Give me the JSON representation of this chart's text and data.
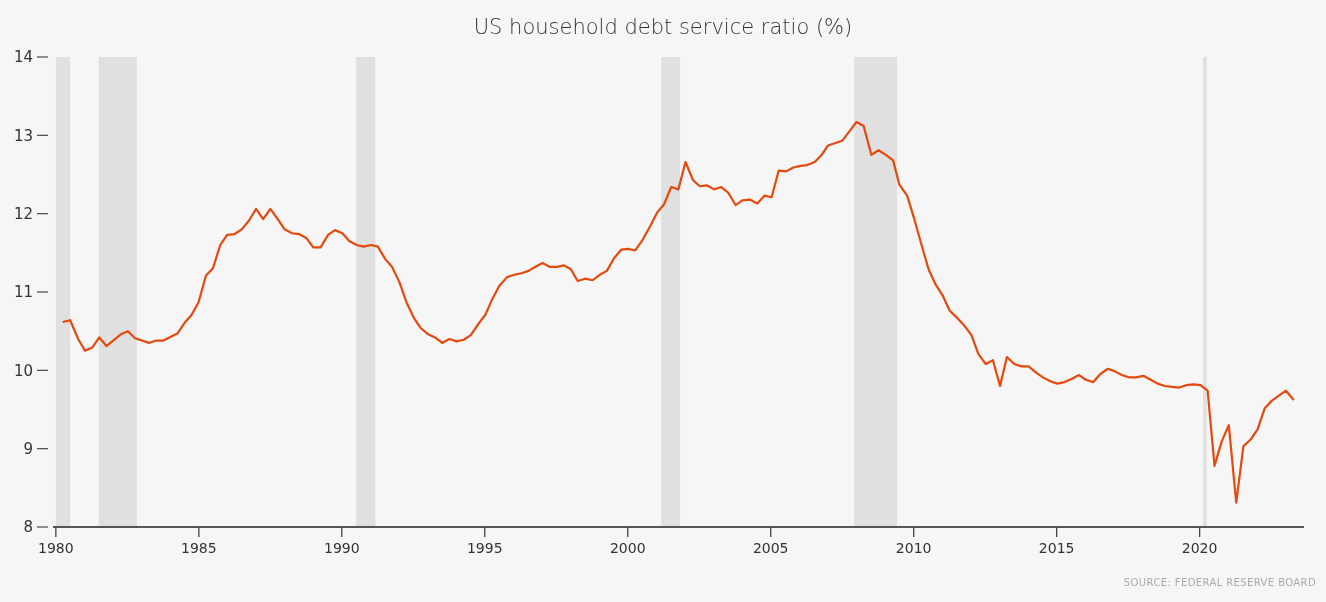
{
  "chart_data": {
    "type": "line",
    "title": "US household debt service ratio (%)",
    "annotations": [
      "SOURCE: FEDERAL RESERVE BOARD"
    ],
    "x": [
      1980.27,
      1980.5,
      1980.78,
      1981.02,
      1981.27,
      1981.52,
      1981.77,
      1982.27,
      1982.52,
      1982.77,
      1983.26,
      1983.5,
      1983.76,
      1984.25,
      1984.49,
      1984.75,
      1984.99,
      1985.25,
      1985.49,
      1985.75,
      1985.99,
      1986.25,
      1986.5,
      1986.75,
      1987.0,
      1987.25,
      1987.5,
      1987.76,
      1988.0,
      1988.26,
      1988.5,
      1988.76,
      1989.0,
      1989.26,
      1989.52,
      1989.76,
      1990.02,
      1990.26,
      1990.52,
      1990.76,
      1991.02,
      1991.26,
      1991.52,
      1991.76,
      1992.02,
      1992.26,
      1992.52,
      1992.76,
      1993.02,
      1993.26,
      1993.51,
      1993.76,
      1994.02,
      1994.26,
      1994.51,
      1994.79,
      1995.02,
      1995.25,
      1995.51,
      1995.78,
      1996.03,
      1996.28,
      1996.53,
      1996.76,
      1997.02,
      1997.28,
      1997.53,
      1997.77,
      1998.01,
      1998.25,
      1998.51,
      1998.77,
      1999.02,
      1999.27,
      1999.52,
      1999.77,
      2000.01,
      2000.26,
      2000.51,
      2000.77,
      2001.02,
      2001.27,
      2001.52,
      2001.77,
      2002.02,
      2002.28,
      2002.52,
      2002.78,
      2003.02,
      2003.27,
      2003.51,
      2003.77,
      2004.01,
      2004.27,
      2004.53,
      2004.78,
      2005.03,
      2005.28,
      2005.54,
      2005.79,
      2006.04,
      2006.28,
      2006.54,
      2006.8,
      2007.0,
      2007.5,
      2007.75,
      2008.0,
      2008.25,
      2008.52,
      2008.77,
      2009.03,
      2009.28,
      2009.5,
      2009.77,
      2010.03,
      2010.26,
      2010.52,
      2010.76,
      2011.02,
      2011.26,
      2011.52,
      2011.77,
      2012.02,
      2012.26,
      2012.52,
      2012.77,
      2013.02,
      2013.26,
      2013.52,
      2013.77,
      2014.02,
      2014.28,
      2014.52,
      2014.78,
      2015.02,
      2015.28,
      2015.52,
      2015.78,
      2016.02,
      2016.28,
      2016.52,
      2016.78,
      2017.02,
      2017.28,
      2017.53,
      2017.78,
      2018.03,
      2018.29,
      2018.53,
      2018.79,
      2019.03,
      2019.29,
      2019.53,
      2019.79,
      2020.03,
      2020.28,
      2020.52,
      2020.77,
      2021.02,
      2021.28,
      2021.53,
      2021.79,
      2022.03,
      2022.28,
      2022.52,
      2022.78,
      2023.02,
      2023.27
    ],
    "series": [
      {
        "color": "#e5490d",
        "values": [
          10.62,
          10.64,
          10.4,
          10.25,
          10.29,
          10.42,
          10.31,
          10.46,
          10.5,
          10.41,
          10.35,
          10.38,
          10.38,
          10.47,
          10.6,
          10.71,
          10.87,
          11.21,
          11.3,
          11.6,
          11.73,
          11.74,
          11.8,
          11.91,
          12.06,
          11.93,
          12.06,
          11.93,
          11.8,
          11.75,
          11.74,
          11.69,
          11.57,
          11.57,
          11.73,
          11.79,
          11.75,
          11.65,
          11.6,
          11.58,
          11.6,
          11.58,
          11.42,
          11.32,
          11.12,
          10.87,
          10.67,
          10.54,
          10.46,
          10.42,
          10.35,
          10.4,
          10.37,
          10.39,
          10.45,
          10.6,
          10.71,
          10.9,
          11.08,
          11.19,
          11.22,
          11.24,
          11.27,
          11.32,
          11.37,
          11.32,
          11.32,
          11.34,
          11.29,
          11.14,
          11.17,
          11.15,
          11.22,
          11.27,
          11.43,
          11.54,
          11.55,
          11.53,
          11.66,
          11.83,
          12.01,
          12.12,
          12.34,
          12.31,
          12.66,
          12.43,
          12.35,
          12.36,
          12.31,
          12.34,
          12.27,
          12.11,
          12.17,
          12.18,
          12.13,
          12.23,
          12.21,
          12.55,
          12.54,
          12.59,
          12.61,
          12.62,
          12.66,
          12.76,
          12.87,
          12.93,
          13.05,
          13.17,
          13.12,
          12.75,
          12.81,
          12.75,
          12.68,
          12.37,
          12.23,
          11.92,
          11.62,
          11.29,
          11.1,
          10.95,
          10.76,
          10.67,
          10.57,
          10.45,
          10.21,
          10.08,
          10.13,
          9.8,
          10.17,
          10.08,
          10.05,
          10.05,
          9.97,
          9.91,
          9.86,
          9.83,
          9.85,
          9.89,
          9.94,
          9.88,
          9.85,
          9.95,
          10.02,
          9.99,
          9.94,
          9.91,
          9.91,
          9.93,
          9.88,
          9.83,
          9.8,
          9.79,
          9.78,
          9.81,
          9.82,
          9.81,
          9.74,
          8.78,
          9.09,
          9.3,
          8.31,
          9.03,
          9.12,
          9.25,
          9.52,
          9.61,
          9.68,
          9.74,
          9.63
        ]
      }
    ],
    "xlim": [
      1979.9,
      2023.65
    ],
    "ylim": [
      8,
      14
    ],
    "xticks": [
      1980,
      1985,
      1990,
      1995,
      2000,
      2005,
      2010,
      2015,
      2020
    ],
    "yticks": [
      8,
      9,
      10,
      11,
      12,
      13,
      14
    ],
    "bands": [
      {
        "axis": "x",
        "from": 1980.0,
        "to": 1980.5,
        "color": "#e0e0e0"
      },
      {
        "axis": "x",
        "from": 1981.5,
        "to": 1982.83,
        "color": "#e0e0e0"
      },
      {
        "axis": "x",
        "from": 1990.5,
        "to": 1991.17,
        "color": "#e0e0e0"
      },
      {
        "axis": "x",
        "from": 2001.17,
        "to": 2001.83,
        "color": "#e0e0e0"
      },
      {
        "axis": "x",
        "from": 2007.92,
        "to": 2009.42,
        "color": "#e0e0e0"
      },
      {
        "axis": "x",
        "from": 2020.12,
        "to": 2020.25,
        "color": "#e0e0e0"
      }
    ],
    "grid": false,
    "line_style": "solid",
    "marker": "none"
  }
}
